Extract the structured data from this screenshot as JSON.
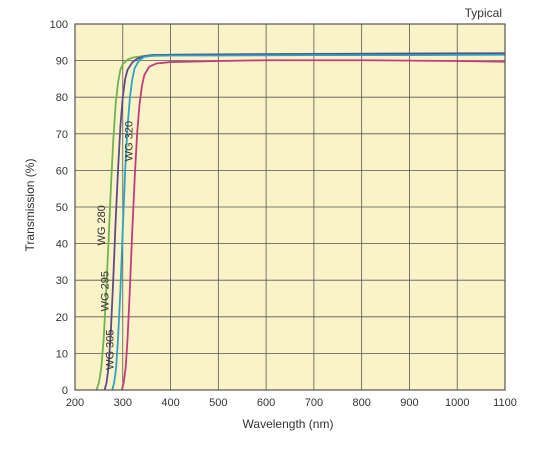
{
  "chart_data": {
    "type": "line",
    "annotation": "Typical",
    "xlabel": "Wavelength (nm)",
    "ylabel": "Transmission (%)",
    "xlim": [
      200,
      1100
    ],
    "ylim": [
      0,
      100
    ],
    "xticks": [
      200,
      300,
      400,
      500,
      600,
      700,
      800,
      900,
      1000,
      1100
    ],
    "yticks": [
      0,
      10,
      20,
      30,
      40,
      50,
      60,
      70,
      80,
      90,
      100
    ],
    "grid": true,
    "background_color": "#fbf3c8",
    "grid_color": "#555555",
    "series": [
      {
        "name": "WG 280",
        "color": "#6fb24f",
        "points": [
          [
            245,
            0
          ],
          [
            250,
            2
          ],
          [
            255,
            6
          ],
          [
            260,
            14
          ],
          [
            265,
            26
          ],
          [
            270,
            40
          ],
          [
            275,
            55
          ],
          [
            280,
            68
          ],
          [
            285,
            78
          ],
          [
            290,
            84
          ],
          [
            295,
            87.5
          ],
          [
            300,
            89
          ],
          [
            310,
            90.3
          ],
          [
            320,
            90.8
          ],
          [
            340,
            91.2
          ],
          [
            360,
            91.5
          ],
          [
            400,
            91.6
          ],
          [
            500,
            91.7
          ],
          [
            600,
            91.8
          ],
          [
            800,
            91.9
          ],
          [
            1000,
            92
          ],
          [
            1100,
            92
          ]
        ]
      },
      {
        "name": "WG 295",
        "color": "#5d4a8c",
        "points": [
          [
            262,
            0
          ],
          [
            266,
            2
          ],
          [
            270,
            6
          ],
          [
            275,
            16
          ],
          [
            280,
            30
          ],
          [
            285,
            46
          ],
          [
            290,
            60
          ],
          [
            295,
            72
          ],
          [
            300,
            80
          ],
          [
            305,
            85
          ],
          [
            310,
            87.5
          ],
          [
            320,
            89.5
          ],
          [
            330,
            90.5
          ],
          [
            345,
            91.2
          ],
          [
            360,
            91.5
          ],
          [
            400,
            91.6
          ],
          [
            500,
            91.7
          ],
          [
            700,
            91.8
          ],
          [
            900,
            91.9
          ],
          [
            1100,
            92
          ]
        ]
      },
      {
        "name": "WG 305",
        "color": "#29a3c9",
        "points": [
          [
            278,
            0
          ],
          [
            282,
            2
          ],
          [
            286,
            6
          ],
          [
            290,
            14
          ],
          [
            295,
            27
          ],
          [
            300,
            44
          ],
          [
            305,
            60
          ],
          [
            310,
            72
          ],
          [
            315,
            80
          ],
          [
            320,
            85
          ],
          [
            325,
            88
          ],
          [
            335,
            90.2
          ],
          [
            345,
            91
          ],
          [
            360,
            91.3
          ],
          [
            400,
            91.4
          ],
          [
            500,
            91.4
          ],
          [
            700,
            91.5
          ],
          [
            900,
            91.5
          ],
          [
            1100,
            91.6
          ]
        ]
      },
      {
        "name": "WG 320",
        "color": "#c23b7e",
        "points": [
          [
            298,
            0
          ],
          [
            302,
            2
          ],
          [
            306,
            6
          ],
          [
            310,
            14
          ],
          [
            315,
            28
          ],
          [
            320,
            44
          ],
          [
            325,
            58
          ],
          [
            330,
            70
          ],
          [
            335,
            78
          ],
          [
            340,
            83
          ],
          [
            345,
            86
          ],
          [
            355,
            88.3
          ],
          [
            370,
            89.2
          ],
          [
            400,
            89.6
          ],
          [
            500,
            89.9
          ],
          [
            600,
            90.1
          ],
          [
            700,
            90.1
          ],
          [
            800,
            90.1
          ],
          [
            900,
            90
          ],
          [
            1000,
            89.9
          ],
          [
            1100,
            89.7
          ]
        ]
      }
    ]
  }
}
